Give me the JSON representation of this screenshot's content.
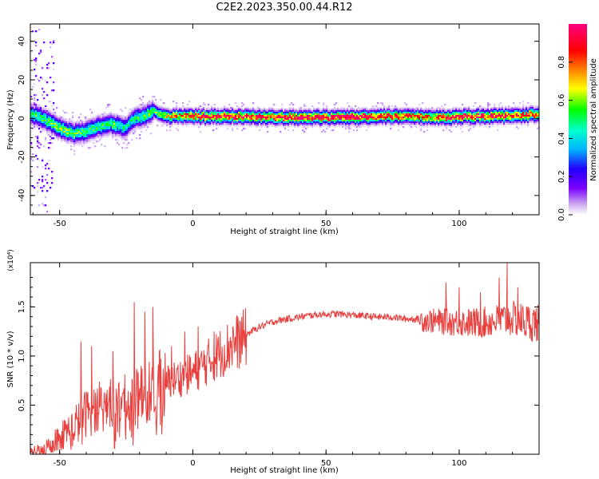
{
  "figure_title": "C2E2.2023.350.00.44.R12",
  "chart_data": [
    {
      "type": "heatmap",
      "title": "C2E2.2023.350.00.44.R12",
      "xlabel": "Height of straight line (km)",
      "ylabel": "Frequency (Hz)",
      "xlim": [
        -61,
        130
      ],
      "ylim": [
        -50,
        49
      ],
      "xticks": [
        -50,
        0,
        50,
        100
      ],
      "xtick_labels": [
        "-50",
        "0",
        "50",
        "100"
      ],
      "yticks": [
        -40,
        -20,
        0,
        20,
        40
      ],
      "ytick_labels": [
        "-40",
        "-20",
        "0",
        "20",
        "40"
      ],
      "colorbar": {
        "label": "Normalized spectral amplitude",
        "range": [
          0.0,
          1.0
        ],
        "ticks": [
          0.0,
          0.2,
          0.4,
          0.6,
          0.8
        ],
        "tick_labels": [
          "0.0",
          "0.2",
          "0.4",
          "0.6",
          "0.8"
        ],
        "colormap": [
          "#ffffff",
          "#c9a0f0",
          "#7a00ff",
          "#2200ff",
          "#00b0ff",
          "#00ffd0",
          "#00ff00",
          "#ffff00",
          "#ff8000",
          "#ff0000",
          "#ff0080"
        ]
      },
      "ridge": {
        "x": [
          -60,
          -55,
          -50,
          -45,
          -40,
          -35,
          -30,
          -25,
          -22,
          -18,
          -15,
          -10,
          -5,
          0,
          10,
          20,
          30,
          40,
          50,
          60,
          70,
          80,
          90,
          95,
          100,
          110,
          120,
          130
        ],
        "freq_hz": [
          2,
          -1,
          -5,
          -8,
          -7,
          -4,
          -3,
          -5,
          0,
          1,
          4,
          1,
          1,
          1,
          1,
          1,
          0.5,
          0.5,
          0.5,
          0.5,
          1,
          1,
          0.5,
          0.5,
          1,
          1,
          1.5,
          2
        ],
        "peak_amplitude": [
          0.55,
          0.6,
          0.65,
          0.6,
          0.6,
          0.55,
          0.6,
          0.5,
          0.55,
          0.6,
          0.6,
          0.7,
          0.8,
          0.85,
          0.9,
          0.9,
          0.85,
          0.9,
          0.9,
          0.9,
          0.85,
          0.85,
          0.8,
          0.9,
          0.9,
          0.9,
          0.85,
          0.8
        ]
      }
    },
    {
      "type": "line",
      "title": "",
      "xlabel": "Height of straight line (km)",
      "ylabel": "SNR (10 * v/v)",
      "y_multiplier": "(x10⁴)",
      "xlim": [
        -61,
        130
      ],
      "ylim": [
        0,
        1.95
      ],
      "xticks": [
        -50,
        0,
        50,
        100
      ],
      "xtick_labels": [
        "-50",
        "0",
        "50",
        "100"
      ],
      "yticks": [
        0.5,
        1.0,
        1.5
      ],
      "ytick_labels": [
        "0.5",
        "1.0",
        "1.5"
      ],
      "series": [
        {
          "color": "#e8403e",
          "x": [
            -61,
            -55,
            -50,
            -45,
            -40,
            -35,
            -30,
            -25,
            -20,
            -15,
            -10,
            -5,
            0,
            5,
            10,
            15,
            20,
            25,
            30,
            35,
            40,
            45,
            50,
            55,
            60,
            65,
            70,
            75,
            80,
            85,
            90,
            95,
            100,
            105,
            110,
            115,
            120,
            125,
            130
          ],
          "y": [
            0.01,
            0.08,
            0.2,
            0.3,
            0.45,
            0.5,
            0.55,
            0.55,
            0.6,
            0.7,
            0.75,
            0.8,
            0.85,
            0.95,
            1.05,
            1.15,
            1.22,
            1.3,
            1.35,
            1.38,
            1.4,
            1.42,
            1.43,
            1.43,
            1.42,
            1.41,
            1.4,
            1.4,
            1.38,
            1.38,
            1.37,
            1.36,
            1.36,
            1.35,
            1.36,
            1.38,
            1.4,
            1.37,
            1.35
          ],
          "peaks_x": [
            -42,
            -38,
            -30,
            -22,
            -18,
            -15,
            -8,
            -3,
            2,
            8,
            15,
            95,
            100,
            108,
            115,
            118,
            122
          ],
          "peaks_y": [
            1.15,
            1.1,
            1.05,
            1.55,
            1.45,
            1.5,
            1.1,
            1.25,
            1.3,
            1.25,
            1.3,
            1.75,
            1.7,
            1.65,
            1.8,
            1.95,
            1.7
          ]
        }
      ]
    }
  ]
}
